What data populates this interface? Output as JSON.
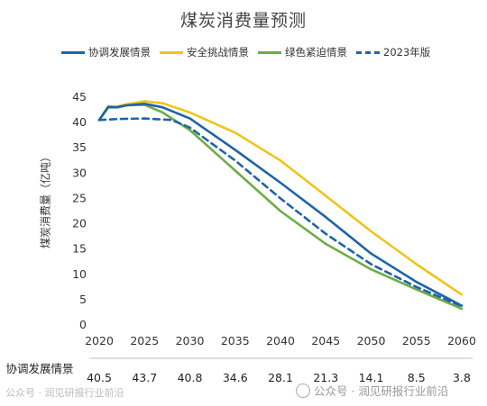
{
  "chart_data": {
    "type": "line",
    "title": "煤炭消费量预测",
    "ylabel": "煤炭消费量（亿吨）",
    "xlabel": "",
    "x": [
      2020,
      2021,
      2022,
      2023,
      2024,
      2025,
      2026,
      2027,
      2028,
      2030,
      2035,
      2040,
      2045,
      2050,
      2055,
      2060
    ],
    "xticks": [
      2020,
      2025,
      2030,
      2035,
      2040,
      2045,
      2050,
      2055,
      2060
    ],
    "yticks": [
      0,
      5,
      10,
      15,
      20,
      25,
      30,
      35,
      40,
      45
    ],
    "xlim": [
      2020,
      2060
    ],
    "ylim": [
      0,
      45
    ],
    "grid": false,
    "legend_position": "top",
    "series": [
      {
        "name": "协调发展情景",
        "color": "#1f64a8",
        "dash": false,
        "points": [
          [
            2020,
            40.5
          ],
          [
            2021,
            43.0
          ],
          [
            2022,
            43.0
          ],
          [
            2023,
            43.4
          ],
          [
            2025,
            43.7
          ],
          [
            2027,
            43.0
          ],
          [
            2030,
            40.8
          ],
          [
            2035,
            34.6
          ],
          [
            2040,
            28.1
          ],
          [
            2045,
            21.3
          ],
          [
            2050,
            14.1
          ],
          [
            2055,
            8.5
          ],
          [
            2060,
            3.8
          ]
        ]
      },
      {
        "name": "安全挑战情景",
        "color": "#f0c419",
        "dash": false,
        "points": [
          [
            2020,
            40.5
          ],
          [
            2021,
            43.0
          ],
          [
            2022,
            43.2
          ],
          [
            2023,
            43.6
          ],
          [
            2025,
            44.2
          ],
          [
            2027,
            43.8
          ],
          [
            2030,
            42.0
          ],
          [
            2035,
            38.0
          ],
          [
            2040,
            32.5
          ],
          [
            2045,
            25.5
          ],
          [
            2050,
            18.5
          ],
          [
            2055,
            12.0
          ],
          [
            2060,
            6.0
          ]
        ]
      },
      {
        "name": "绿色紧迫情景",
        "color": "#6fac45",
        "dash": false,
        "points": [
          [
            2020,
            40.5
          ],
          [
            2021,
            43.2
          ],
          [
            2022,
            43.0
          ],
          [
            2023,
            43.4
          ],
          [
            2025,
            43.5
          ],
          [
            2027,
            42.0
          ],
          [
            2030,
            38.5
          ],
          [
            2035,
            30.5
          ],
          [
            2040,
            22.5
          ],
          [
            2045,
            16.0
          ],
          [
            2050,
            11.0
          ],
          [
            2055,
            7.0
          ],
          [
            2060,
            3.2
          ]
        ]
      },
      {
        "name": "2023年版",
        "color": "#1f64a8",
        "dash": true,
        "points": [
          [
            2020,
            40.5
          ],
          [
            2022,
            40.7
          ],
          [
            2025,
            40.8
          ],
          [
            2028,
            40.5
          ],
          [
            2030,
            39.0
          ],
          [
            2035,
            32.5
          ],
          [
            2040,
            25.0
          ],
          [
            2045,
            18.0
          ],
          [
            2050,
            12.0
          ],
          [
            2055,
            7.5
          ],
          [
            2060,
            3.7
          ]
        ]
      }
    ],
    "table": {
      "row_label": "协调发展情景",
      "columns": [
        2020,
        2025,
        2030,
        2035,
        2040,
        2045,
        2050,
        2055,
        2060
      ],
      "values": [
        "40.5",
        "43.7",
        "40.8",
        "34.6",
        "28.1",
        "21.3",
        "14.1",
        "8.5",
        "3.8"
      ]
    }
  },
  "watermark": {
    "left_text": "公众号 · 润见研报行业前沿",
    "right_text": "公众号 · 润见研报行业前沿"
  }
}
